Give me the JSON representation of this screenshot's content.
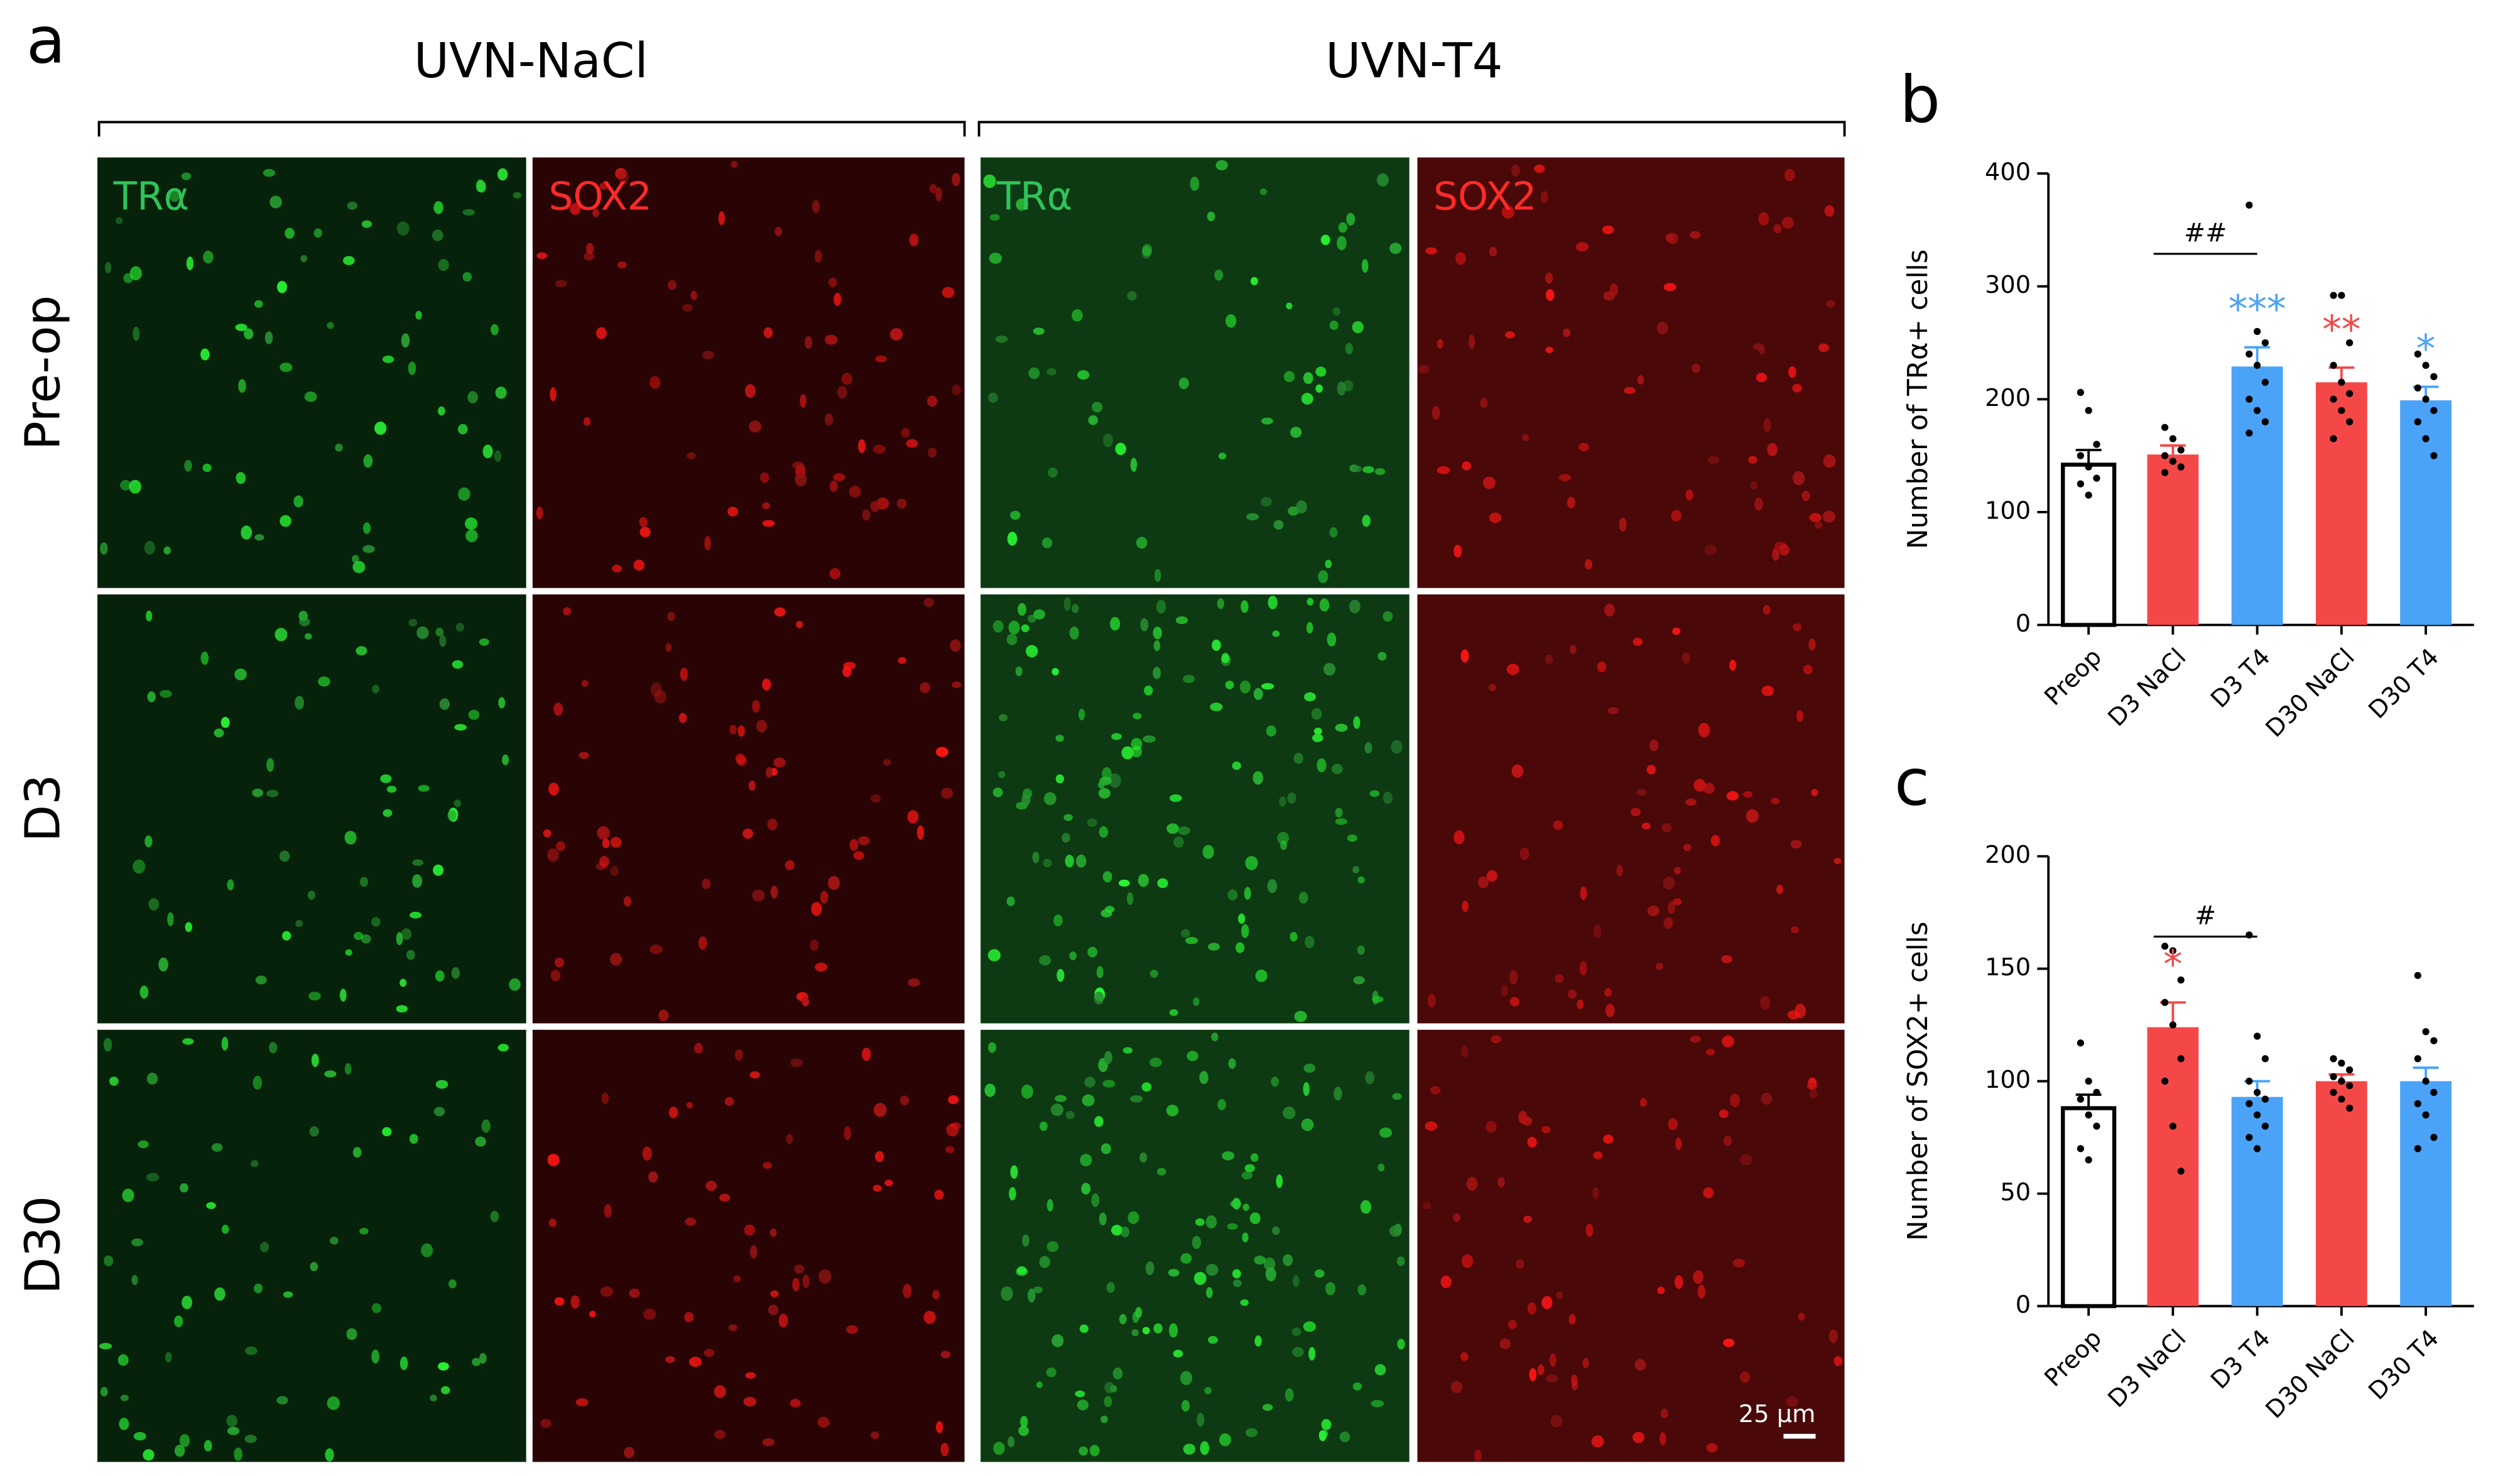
{
  "panel_a": {
    "label": "a",
    "groups": [
      "UVN-NaCl",
      "UVN-T4"
    ],
    "rows": [
      "Pre-op",
      "D3",
      "D30"
    ],
    "channels": [
      "TRα",
      "SOX2"
    ],
    "scale_bar": "25 µm"
  },
  "chart_data": [
    {
      "type": "bar",
      "label": "b",
      "y_label": "Number of TRα+ cells",
      "categories": [
        "Preop",
        "D3 NaCl",
        "D3 T4",
        "D30 NaCl",
        "D30 T4"
      ],
      "values": [
        142,
        151,
        229,
        215,
        199
      ],
      "errors": [
        13,
        8,
        17,
        13,
        12
      ],
      "points": [
        [
          206,
          190,
          160,
          150,
          140,
          130,
          125,
          115
        ],
        [
          175,
          165,
          155,
          150,
          145,
          140,
          135
        ],
        [
          372,
          260,
          250,
          240,
          230,
          215,
          200,
          190,
          180,
          170
        ],
        [
          292,
          292,
          250,
          230,
          215,
          205,
          200,
          190,
          180,
          165
        ],
        [
          240,
          230,
          220,
          210,
          200,
          190,
          180,
          165,
          150
        ]
      ],
      "colors": [
        "#ffffff",
        "#f44848",
        "#4aa3f7",
        "#f44848",
        "#4aa3f7"
      ],
      "ylim": [
        0,
        400
      ],
      "yticks": [
        0,
        100,
        200,
        300,
        400
      ],
      "annotations": [
        {
          "text": "##",
          "from": "D3 NaCl",
          "to": "D3 T4"
        },
        {
          "text": "***",
          "at": "D3 T4",
          "color": "#4aa3f7"
        },
        {
          "text": "**",
          "at": "D30 NaCl",
          "color": "#f44848"
        },
        {
          "text": "*",
          "at": "D30 T4",
          "color": "#4aa3f7"
        }
      ]
    },
    {
      "type": "bar",
      "label": "c",
      "y_label": "Number of SOX2+ cells",
      "categories": [
        "Preop",
        "D3 NaCl",
        "D3 T4",
        "D30 NaCl",
        "D30 T4"
      ],
      "values": [
        88,
        124,
        93,
        100,
        100
      ],
      "errors": [
        6,
        11,
        7,
        3,
        6
      ],
      "points": [
        [
          117,
          100,
          95,
          92,
          85,
          80,
          70,
          65
        ],
        [
          160,
          158,
          145,
          135,
          125,
          110,
          100,
          80,
          60
        ],
        [
          165,
          120,
          110,
          100,
          95,
          92,
          90,
          85,
          80,
          75,
          70
        ],
        [
          110,
          108,
          105,
          102,
          100,
          98,
          95,
          92,
          88
        ],
        [
          147,
          122,
          118,
          110,
          100,
          95,
          90,
          85,
          75,
          70
        ]
      ],
      "colors": [
        "#ffffff",
        "#f44848",
        "#4aa3f7",
        "#f44848",
        "#4aa3f7"
      ],
      "ylim": [
        0,
        200
      ],
      "yticks": [
        0,
        50,
        100,
        150,
        200
      ],
      "annotations": [
        {
          "text": "#",
          "from": "D3 NaCl",
          "to": "D3 T4"
        },
        {
          "text": "*",
          "at": "D3 NaCl",
          "color": "#f44848"
        }
      ]
    }
  ]
}
